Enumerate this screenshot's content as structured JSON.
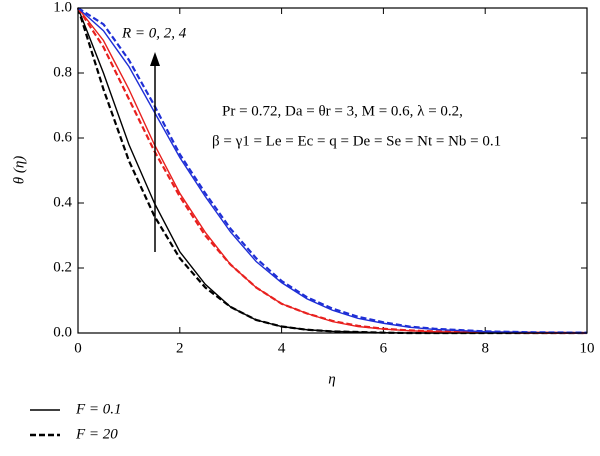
{
  "chart_data": {
    "type": "line",
    "x_label": "η",
    "y_label": "θ (η)",
    "x": [
      0,
      0.5,
      1,
      1.5,
      2,
      2.5,
      3,
      3.5,
      4,
      4.5,
      5,
      5.5,
      6,
      6.5,
      7,
      8,
      9,
      10
    ],
    "series": [
      {
        "color": "#000000",
        "dash": "solid",
        "values": [
          1,
          0.8,
          0.58,
          0.4,
          0.25,
          0.15,
          0.08,
          0.04,
          0.02,
          0.01,
          0.005,
          0.003,
          0.001,
          0,
          0,
          0,
          0,
          0
        ]
      },
      {
        "color": "#000000",
        "dash": "dashed",
        "values": [
          1,
          0.75,
          0.53,
          0.36,
          0.23,
          0.14,
          0.08,
          0.04,
          0.02,
          0.01,
          0.005,
          0.003,
          0.001,
          0,
          0,
          0,
          0,
          0
        ]
      },
      {
        "color": "#e8201e",
        "dash": "solid",
        "values": [
          1,
          0.9,
          0.75,
          0.58,
          0.43,
          0.31,
          0.21,
          0.14,
          0.09,
          0.06,
          0.035,
          0.02,
          0.012,
          0.007,
          0.004,
          0.001,
          0,
          0
        ]
      },
      {
        "color": "#e8201e",
        "dash": "dashed",
        "values": [
          1,
          0.88,
          0.72,
          0.56,
          0.42,
          0.3,
          0.21,
          0.14,
          0.09,
          0.06,
          0.037,
          0.022,
          0.013,
          0.008,
          0.005,
          0.002,
          0.001,
          0
        ]
      },
      {
        "color": "#1f2fd6",
        "dash": "solid",
        "values": [
          1,
          0.93,
          0.82,
          0.68,
          0.54,
          0.42,
          0.31,
          0.22,
          0.155,
          0.105,
          0.07,
          0.045,
          0.03,
          0.018,
          0.011,
          0.004,
          0.001,
          0
        ]
      },
      {
        "color": "#1f2fd6",
        "dash": "dashed",
        "values": [
          1,
          0.95,
          0.84,
          0.7,
          0.55,
          0.43,
          0.32,
          0.23,
          0.16,
          0.11,
          0.075,
          0.05,
          0.033,
          0.02,
          0.013,
          0.005,
          0.002,
          0.001
        ]
      }
    ],
    "xlim": [
      0,
      10
    ],
    "xticks": [
      0,
      2,
      4,
      6,
      8,
      10
    ],
    "ylim": [
      0,
      1
    ],
    "yticks": [
      {
        "value": 0,
        "label": "0.0"
      },
      0.2,
      0.4,
      0.6,
      0.8,
      {
        "value": 1,
        "label": "1.0"
      }
    ],
    "annotations": [
      "R = 0, 2, 4",
      "Pr = 0.72, Da = θr = 3, M = 0.6, λ = 0.2,",
      "β = γ1 = Le = Ec = q = De = Se = Nt = Nb = 0.1"
    ],
    "legend": [
      {
        "label": "F = 0.1",
        "dash": "solid"
      },
      {
        "label": "F = 20",
        "dash": "dashed"
      }
    ]
  }
}
